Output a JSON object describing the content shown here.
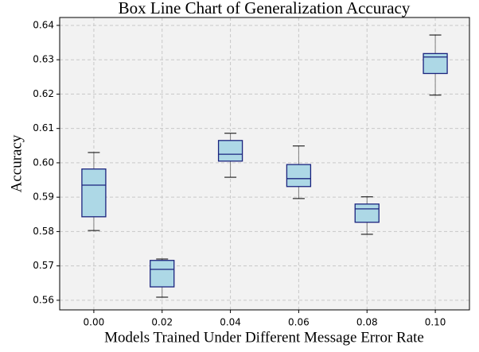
{
  "chart_data": {
    "type": "box",
    "title": "Box Line Chart of Generalization Accuracy",
    "x_label": "Models Trained Under Different Message Error Rate",
    "y_label": "Accuracy",
    "categories": [
      "0.00",
      "0.02",
      "0.04",
      "0.06",
      "0.08",
      "0.10"
    ],
    "boxes": [
      {
        "min": 0.5803,
        "q1": 0.5843,
        "median": 0.5935,
        "q3": 0.5982,
        "max": 0.603
      },
      {
        "min": 0.5609,
        "q1": 0.5639,
        "median": 0.569,
        "q3": 0.5716,
        "max": 0.572
      },
      {
        "min": 0.5958,
        "q1": 0.6005,
        "median": 0.6025,
        "q3": 0.6065,
        "max": 0.6086
      },
      {
        "min": 0.5896,
        "q1": 0.5931,
        "median": 0.5954,
        "q3": 0.5995,
        "max": 0.6049
      },
      {
        "min": 0.5792,
        "q1": 0.5827,
        "median": 0.5866,
        "q3": 0.588,
        "max": 0.5901
      },
      {
        "min": 0.6197,
        "q1": 0.626,
        "median": 0.6308,
        "q3": 0.6318,
        "max": 0.6372
      }
    ],
    "box_color": "#add8e6",
    "edge_color": "#1a237e",
    "whisker_color": "#808080",
    "ylim": [
      0.5572,
      0.6423
    ],
    "yticks": [
      {
        "value": 0.56,
        "label": "0.56"
      },
      {
        "value": 0.57,
        "label": "0.57"
      },
      {
        "value": 0.58,
        "label": "0.58"
      },
      {
        "value": 0.59,
        "label": "0.59"
      },
      {
        "value": 0.6,
        "label": "0.60"
      },
      {
        "value": 0.61,
        "label": "0.61"
      },
      {
        "value": 0.62,
        "label": "0.62"
      },
      {
        "value": 0.63,
        "label": "0.63"
      },
      {
        "value": 0.64,
        "label": "0.64"
      }
    ],
    "grid": true
  }
}
